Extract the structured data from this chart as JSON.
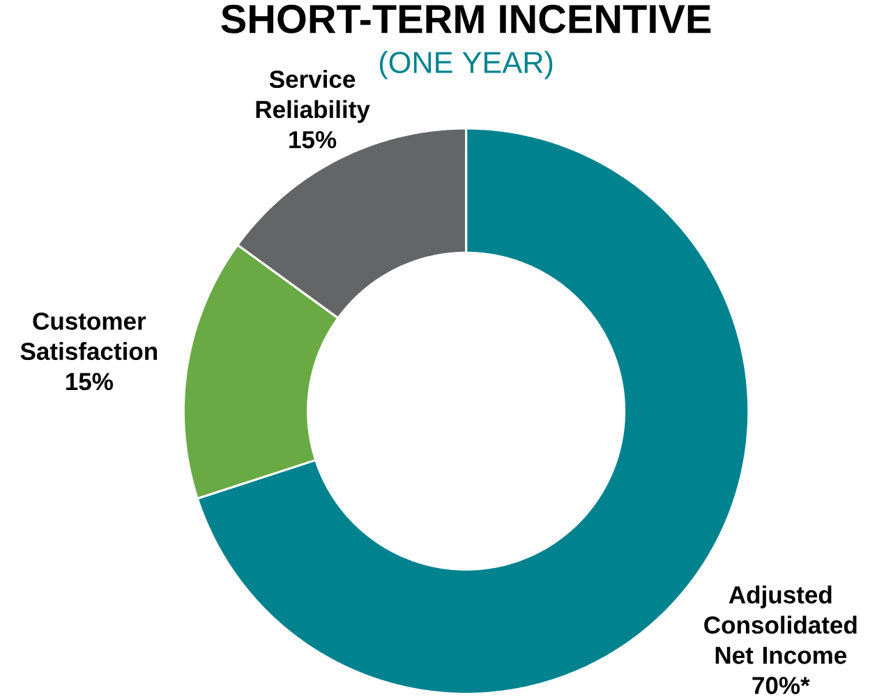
{
  "chart_data": {
    "type": "donut",
    "title": "SHORT-TERM INCENTIVE",
    "subtitle": "(ONE YEAR)",
    "categories": [
      "Adjusted Consolidated Net Income",
      "Customer Satisfaction",
      "Service Reliability"
    ],
    "values": [
      70,
      15,
      15
    ],
    "colors": [
      "#00838f",
      "#6aaa45",
      "#646567"
    ],
    "value_labels": [
      "70%*",
      "15%",
      "15%"
    ]
  }
}
